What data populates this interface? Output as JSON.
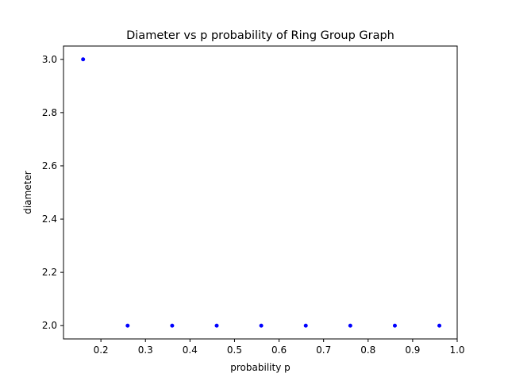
{
  "chart_data": {
    "type": "scatter",
    "title": "Diameter vs p probability of Ring Group Graph",
    "xlabel": "probability p",
    "ylabel": "diameter",
    "xlim": [
      0.116,
      1.0
    ],
    "ylim": [
      1.95,
      3.05
    ],
    "xticks": [
      0.2,
      0.3,
      0.4,
      0.5,
      0.6,
      0.7,
      0.8,
      0.9,
      1.0
    ],
    "xtick_labels": [
      "0.2",
      "0.3",
      "0.4",
      "0.5",
      "0.6",
      "0.7",
      "0.8",
      "0.9",
      "1.0"
    ],
    "yticks": [
      2.0,
      2.2,
      2.4,
      2.6,
      2.8,
      3.0
    ],
    "ytick_labels": [
      "2.0",
      "2.2",
      "2.4",
      "2.6",
      "2.8",
      "3.0"
    ],
    "grid": false,
    "marker_color": "#0000ff",
    "series": [
      {
        "x": [
          0.16,
          0.26,
          0.36,
          0.46,
          0.56,
          0.66,
          0.76,
          0.86,
          0.96
        ],
        "y": [
          3.0,
          2.0,
          2.0,
          2.0,
          2.0,
          2.0,
          2.0,
          2.0,
          2.0
        ]
      }
    ]
  }
}
